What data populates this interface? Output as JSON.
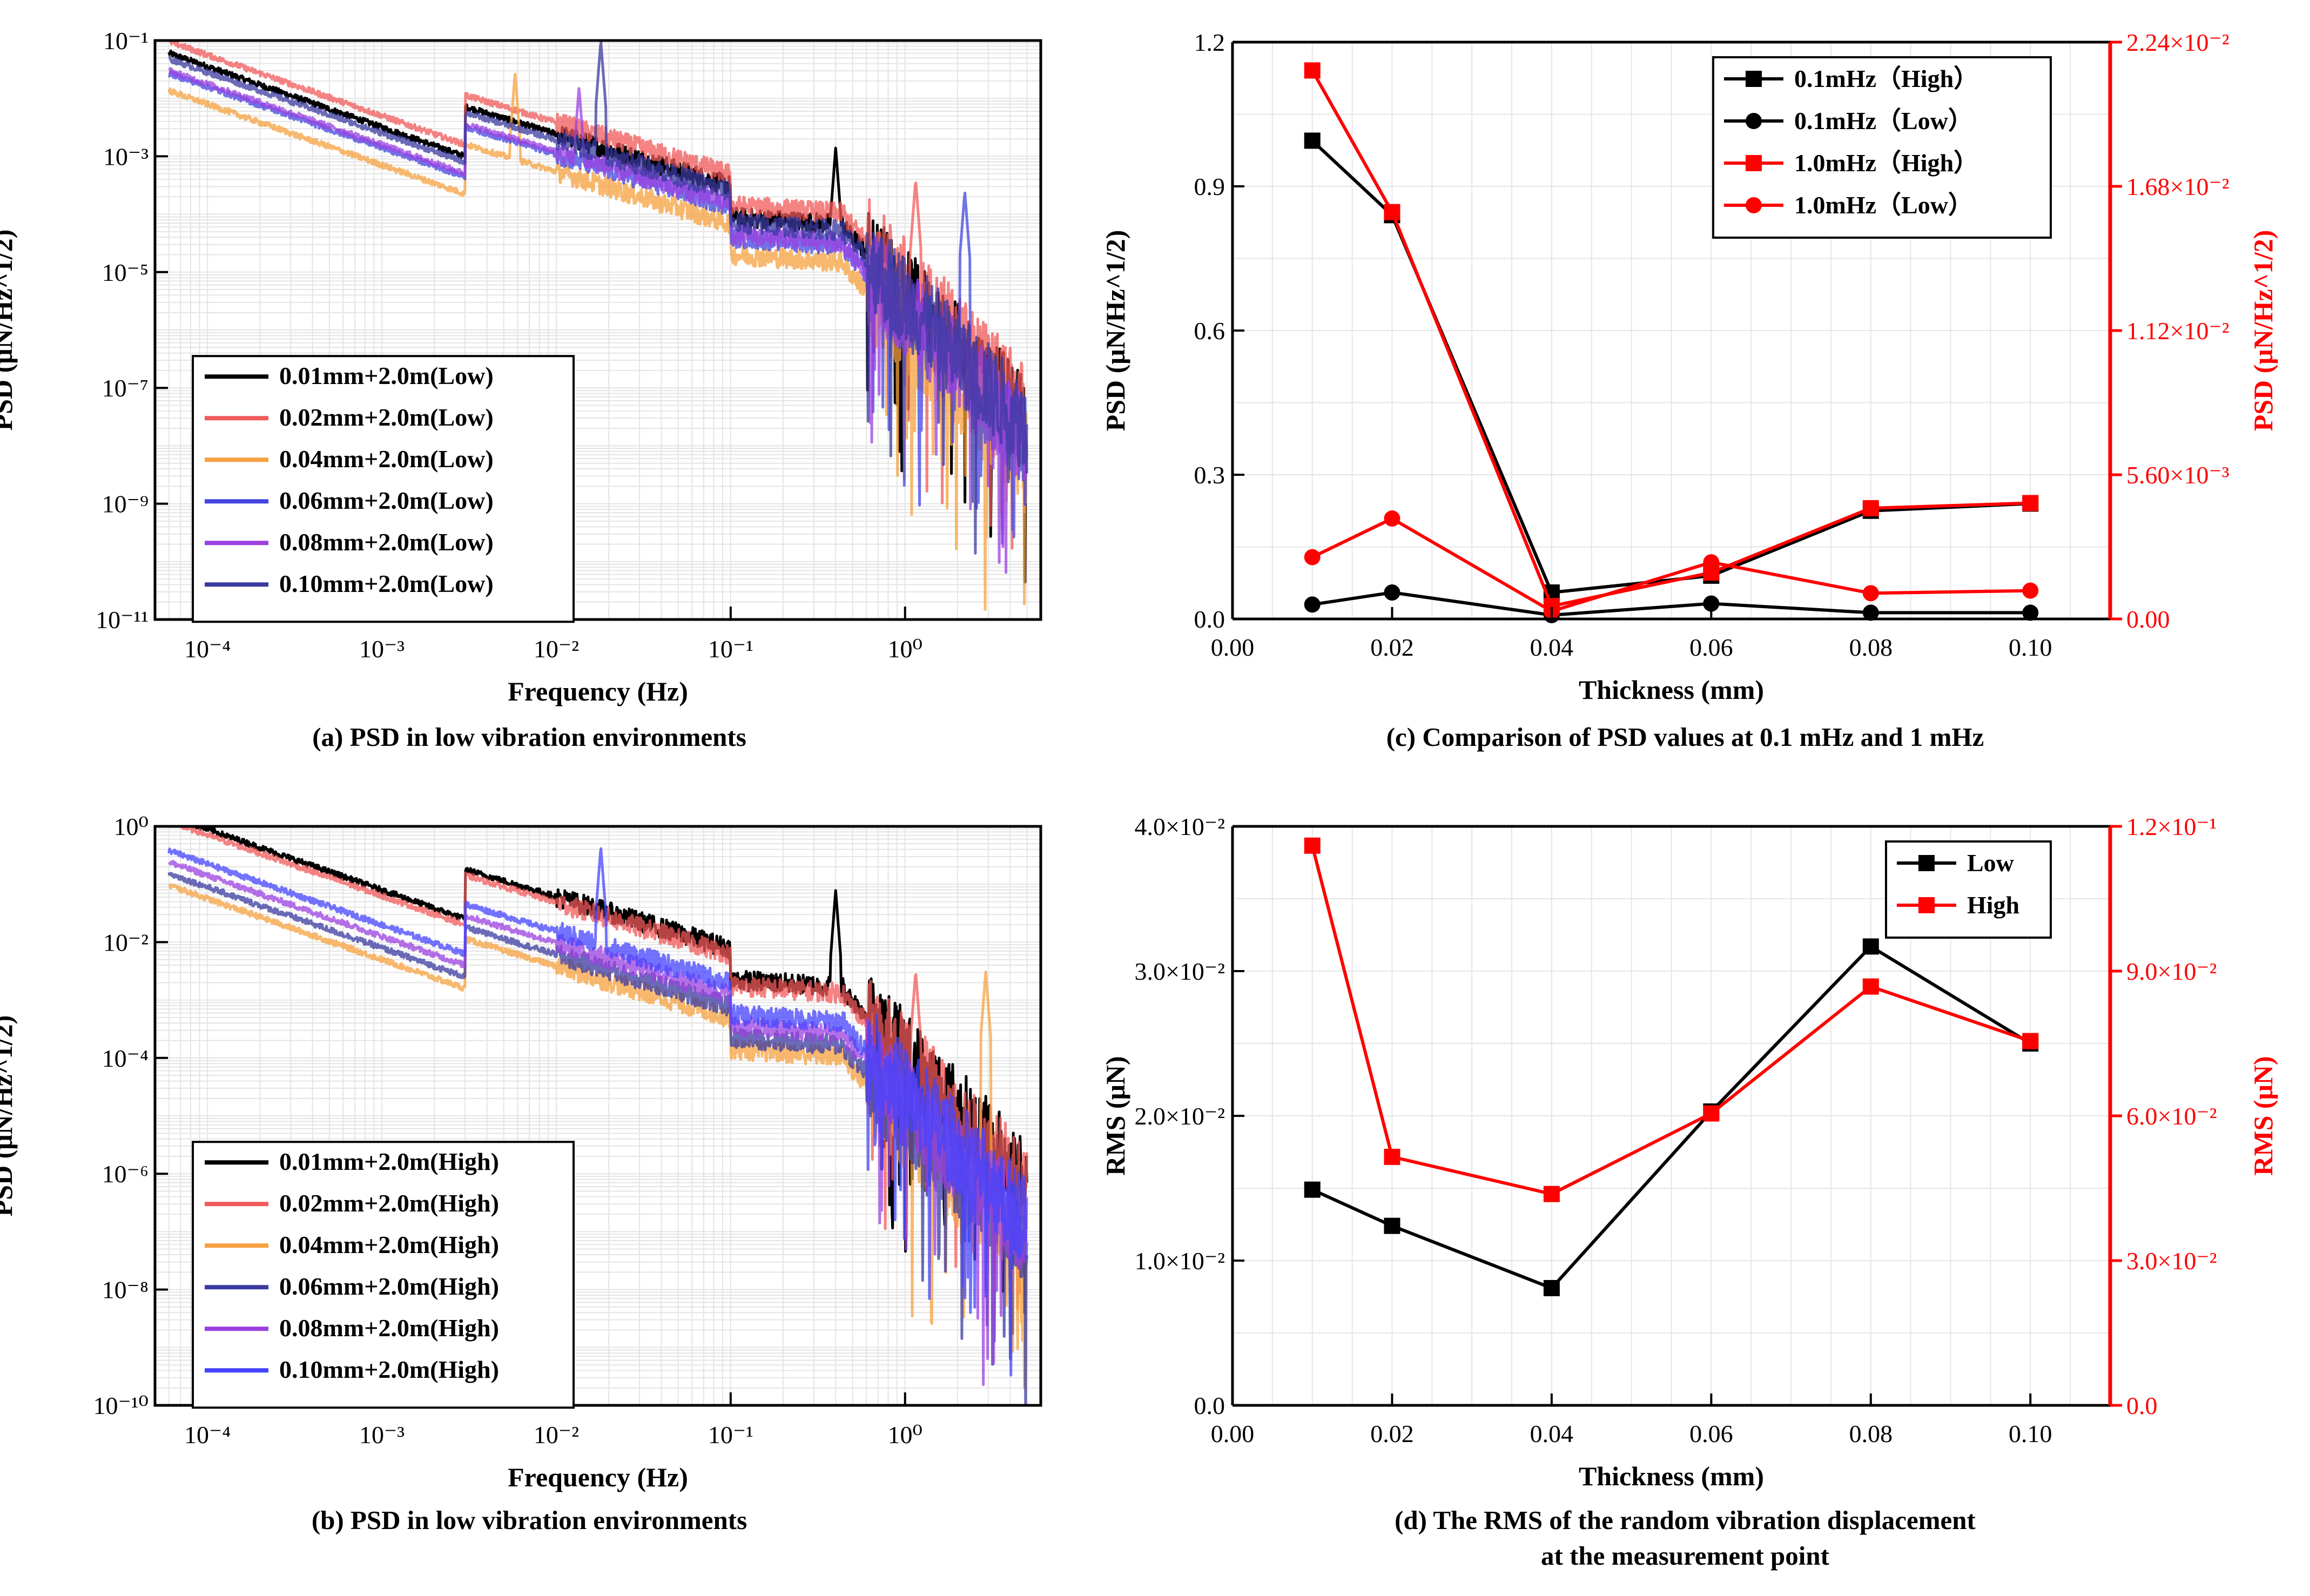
{
  "chart_data": [
    {
      "id": "a",
      "type": "line",
      "caption": "(a) PSD in low vibration environments",
      "xlabel": "Frequency (Hz)",
      "ylabel": "PSD (μN/Hz^1/2)",
      "xscale": "log",
      "yscale": "log",
      "xlim": [
        5e-05,
        6
      ],
      "ylim_exp": [
        -11,
        -1
      ],
      "xtick_exps": [
        -4,
        -3,
        -2,
        -1,
        0
      ],
      "ytick_exps": [
        -11,
        -9,
        -7,
        -5,
        -3,
        -1
      ],
      "legend_position": "lower-left",
      "series": [
        {
          "name": "0.01mm+2.0m(Low)",
          "color": "#000000",
          "level_exp": -1.45,
          "peak_freq": 0.4,
          "peak_exp": -2.85
        },
        {
          "name": "0.02mm+2.0m(Low)",
          "color": "#f15a5a",
          "level_exp": -1.25,
          "peak_freq": 1.15,
          "peak_exp": -3.4
        },
        {
          "name": "0.04mm+2.0m(Low)",
          "color": "#f5a13f",
          "level_exp": -2.1,
          "peak_freq": 0.0058,
          "peak_exp": -1.55
        },
        {
          "name": "0.06mm+2.0m(Low)",
          "color": "#4444e0",
          "level_exp": -1.8,
          "peak_freq": 2.2,
          "peak_exp": -3.6
        },
        {
          "name": "0.08mm+2.0m(Low)",
          "color": "#9b40e0",
          "level_exp": -1.75,
          "peak_freq": 0.0135,
          "peak_exp": -1.8
        },
        {
          "name": "0.10mm+2.0m(Low)",
          "color": "#3a3aa0",
          "level_exp": -1.55,
          "peak_freq": 0.018,
          "peak_exp": -1.0
        }
      ]
    },
    {
      "id": "b",
      "type": "line",
      "caption": "(b) PSD in low vibration environments",
      "xlabel": "Frequency (Hz)",
      "ylabel": "PSD (μN/Hz^1/2)",
      "xscale": "log",
      "yscale": "log",
      "xlim": [
        5e-05,
        6
      ],
      "ylim_exp": [
        -10,
        0
      ],
      "xtick_exps": [
        -4,
        -3,
        -2,
        -1,
        0
      ],
      "ytick_exps": [
        -10,
        -8,
        -6,
        -4,
        -2,
        0
      ],
      "legend_position": "lower-left",
      "series": [
        {
          "name": "0.01mm+2.0m(High)",
          "color": "#000000",
          "level_exp": -0.05,
          "peak_freq": 0.4,
          "peak_exp": -1.1
        },
        {
          "name": "0.02mm+2.0m(High)",
          "color": "#f15a5a",
          "level_exp": -0.15,
          "peak_freq": 1.15,
          "peak_exp": -2.5
        },
        {
          "name": "0.04mm+2.0m(High)",
          "color": "#f5a13f",
          "level_exp": -1.25,
          "peak_freq": 2.9,
          "peak_exp": -2.5
        },
        {
          "name": "0.06mm+2.0m(High)",
          "color": "#3a3aa0",
          "level_exp": -1.05,
          "peak_freq": 0.0135,
          "peak_exp": -2.6
        },
        {
          "name": "0.08mm+2.0m(High)",
          "color": "#9b40e0",
          "level_exp": -0.85,
          "peak_freq": 0.0135,
          "peak_exp": -2.3
        },
        {
          "name": "0.10mm+2.0m(High)",
          "color": "#4444ff",
          "level_exp": -0.65,
          "peak_freq": 0.018,
          "peak_exp": -0.35
        }
      ]
    },
    {
      "id": "c",
      "type": "line",
      "caption": "(c) Comparison of PSD values at 0.1 mHz and 1 mHz",
      "xlabel": "Thickness (mm)",
      "ylabel": "PSD (μN/Hz^1/2)",
      "ylabel_right": "PSD (μN/Hz^1/2)",
      "xlim": [
        0.0,
        0.11
      ],
      "ylim": [
        0.0,
        1.2
      ],
      "ylim_right": [
        0.0,
        0.0224
      ],
      "x": [
        0.01,
        0.02,
        0.04,
        0.06,
        0.08,
        0.1
      ],
      "xtick_labels": [
        "0.00",
        "0.02",
        "0.04",
        "0.06",
        "0.08",
        "0.10"
      ],
      "ytick_labels": [
        "0.0",
        "0.3",
        "0.6",
        "0.9",
        "1.2"
      ],
      "ytick_labels_right": [
        "0.00",
        "5.60×10⁻³",
        "1.12×10⁻²",
        "1.68×10⁻²",
        "2.24×10⁻²"
      ],
      "legend_position": "top-right",
      "series": [
        {
          "name": "0.1mHz（High）",
          "axis": "left",
          "color": "#000000",
          "marker": "square",
          "values": [
            0.995,
            0.84,
            0.055,
            0.09,
            0.225,
            0.24
          ]
        },
        {
          "name": "0.1mHz（Low）",
          "axis": "left",
          "color": "#000000",
          "marker": "circle",
          "values": [
            0.03,
            0.055,
            0.008,
            0.032,
            0.013,
            0.013
          ]
        },
        {
          "name": "1.0mHz（High）",
          "axis": "right",
          "color": "#ff0000",
          "marker": "square",
          "values": [
            0.0213,
            0.0158,
            0.0005,
            0.0018,
            0.0043,
            0.0045
          ]
        },
        {
          "name": "1.0mHz（Low）",
          "axis": "right",
          "color": "#ff0000",
          "marker": "circle",
          "values": [
            0.0024,
            0.0039,
            0.0003,
            0.0022,
            0.001,
            0.0011
          ]
        }
      ]
    },
    {
      "id": "d",
      "type": "line",
      "caption": "(d) The RMS of the random vibration displacement",
      "caption_line2": "at the measurement point",
      "xlabel": "Thickness (mm)",
      "ylabel": "RMS (μN)",
      "ylabel_right": "RMS (μN)",
      "xlim": [
        0.0,
        0.11
      ],
      "ylim": [
        0.0,
        0.04
      ],
      "ylim_right": [
        0.0,
        0.12
      ],
      "x": [
        0.01,
        0.02,
        0.04,
        0.06,
        0.08,
        0.1
      ],
      "xtick_labels": [
        "0.00",
        "0.02",
        "0.04",
        "0.06",
        "0.08",
        "0.10"
      ],
      "ytick_labels": [
        "0.0",
        "1.0×10⁻²",
        "2.0×10⁻²",
        "3.0×10⁻²",
        "4.0×10⁻²"
      ],
      "ytick_labels_right": [
        "0.0",
        "3.0×10⁻²",
        "6.0×10⁻²",
        "9.0×10⁻²",
        "1.2×10⁻¹"
      ],
      "legend_position": "top-right",
      "series": [
        {
          "name": "Low",
          "axis": "left",
          "color": "#000000",
          "marker": "square",
          "values": [
            0.0149,
            0.0124,
            0.0081,
            0.0203,
            0.0317,
            0.025
          ]
        },
        {
          "name": "High",
          "axis": "right",
          "color": "#ff0000",
          "marker": "square",
          "values": [
            0.116,
            0.0515,
            0.0438,
            0.0605,
            0.0868,
            0.0755
          ]
        }
      ]
    }
  ]
}
